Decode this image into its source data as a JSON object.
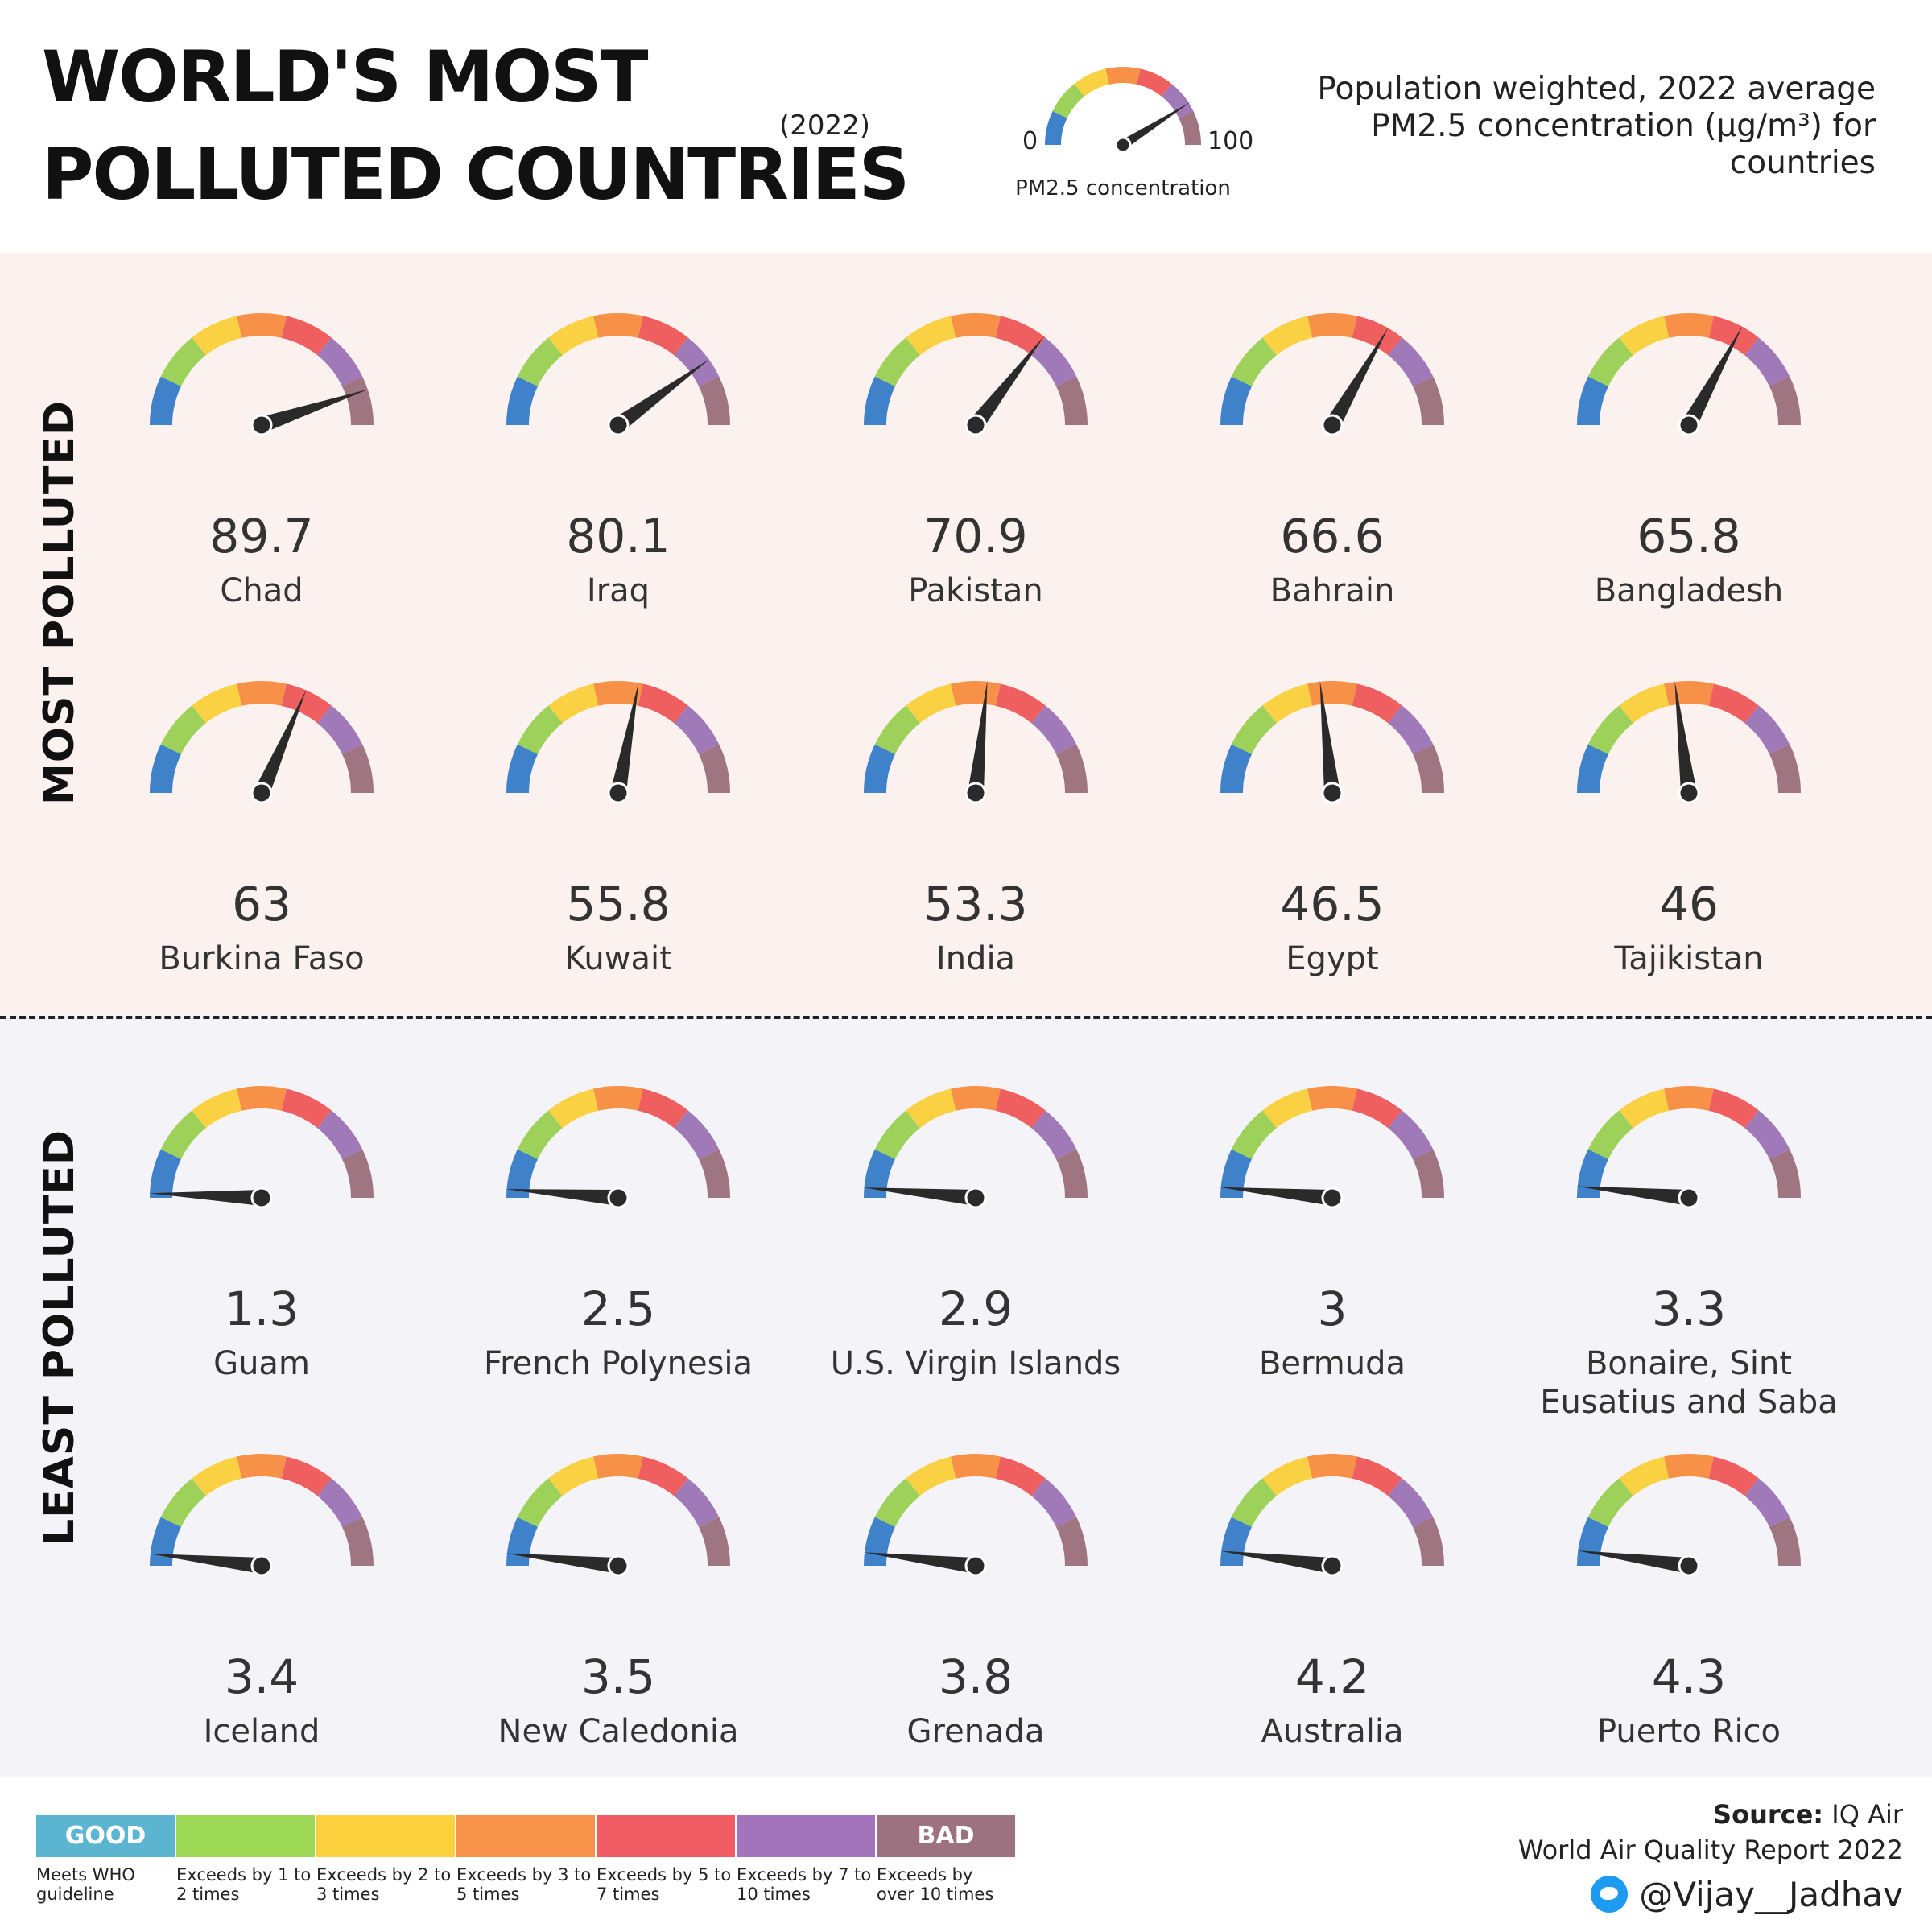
{
  "title": {
    "line1": "WORLD'S MOST",
    "line2": "POLLUTED COUNTRIES",
    "year": "(2022)"
  },
  "subtitle": "Population weighted, 2022 average PM2.5 concentration (μg/m³) for countries",
  "legend_gauge": {
    "min_label": "0",
    "max_label": "100",
    "caption": "PM2.5 concentration",
    "example_value": 82
  },
  "sections": {
    "most_label": "MOST POLLUTED",
    "least_label": "LEAST POLLUTED"
  },
  "colors": {
    "gauge_segments": [
      "#3f82c9",
      "#9dd15a",
      "#f9d143",
      "#f79147",
      "#f05f60",
      "#a07ab8",
      "#9f7582"
    ],
    "needle": "#2a2a2a",
    "most_background": "#fbf1ef",
    "least_background": "#f4f3f7"
  },
  "chart_data": {
    "type": "gauge",
    "gauge_range": [
      0,
      100
    ],
    "most_polluted": [
      {
        "label": "89.7",
        "value": 89.7,
        "country": "Chad"
      },
      {
        "label": "80.1",
        "value": 80.1,
        "country": "Iraq"
      },
      {
        "label": "70.9",
        "value": 70.9,
        "country": "Pakistan"
      },
      {
        "label": "66.6",
        "value": 66.6,
        "country": "Bahrain"
      },
      {
        "label": "65.8",
        "value": 65.8,
        "country": "Bangladesh"
      },
      {
        "label": "63",
        "value": 63,
        "country": "Burkina Faso"
      },
      {
        "label": "55.8",
        "value": 55.8,
        "country": "Kuwait"
      },
      {
        "label": "53.3",
        "value": 53.3,
        "country": "India"
      },
      {
        "label": "46.5",
        "value": 46.5,
        "country": "Egypt"
      },
      {
        "label": "46",
        "value": 46,
        "country": "Tajikistan"
      }
    ],
    "least_polluted": [
      {
        "label": "1.3",
        "value": 1.3,
        "country": "Guam"
      },
      {
        "label": "2.5",
        "value": 2.5,
        "country": "French Polynesia"
      },
      {
        "label": "2.9",
        "value": 2.9,
        "country": "U.S. Virgin Islands"
      },
      {
        "label": "3",
        "value": 3,
        "country": "Bermuda"
      },
      {
        "label": "3.3",
        "value": 3.3,
        "country": "Bonaire, Sint Eusatius and Saba"
      },
      {
        "label": "3.4",
        "value": 3.4,
        "country": "Iceland"
      },
      {
        "label": "3.5",
        "value": 3.5,
        "country": "New Caledonia"
      },
      {
        "label": "3.8",
        "value": 3.8,
        "country": "Grenada"
      },
      {
        "label": "4.2",
        "value": 4.2,
        "country": "Australia"
      },
      {
        "label": "4.3",
        "value": 4.3,
        "country": "Puerto Rico"
      }
    ]
  },
  "scale": [
    {
      "swatch_label": "GOOD",
      "color": "#5bb5d0",
      "text": "Meets WHO guideline"
    },
    {
      "swatch_label": "",
      "color": "#9ed955",
      "text": "Exceeds by 1 to 2 times"
    },
    {
      "swatch_label": "",
      "color": "#fbd13d",
      "text": "Exceeds by 2 to 3 times"
    },
    {
      "swatch_label": "",
      "color": "#f8934c",
      "text": "Exceeds by 3 to 5 times"
    },
    {
      "swatch_label": "",
      "color": "#f15b64",
      "text": "Exceeds by 5 to 7 times"
    },
    {
      "swatch_label": "",
      "color": "#a374bb",
      "text": "Exceeds by 7 to 10 times"
    },
    {
      "swatch_label": "BAD",
      "color": "#9c7281",
      "text": "Exceeds by over 10 times"
    }
  ],
  "source": {
    "label": "Source:",
    "name": "IQ Air",
    "report": "World Air Quality Report 2022",
    "handle": "@Vijay__Jadhav",
    "icon": "twitter-icon"
  }
}
